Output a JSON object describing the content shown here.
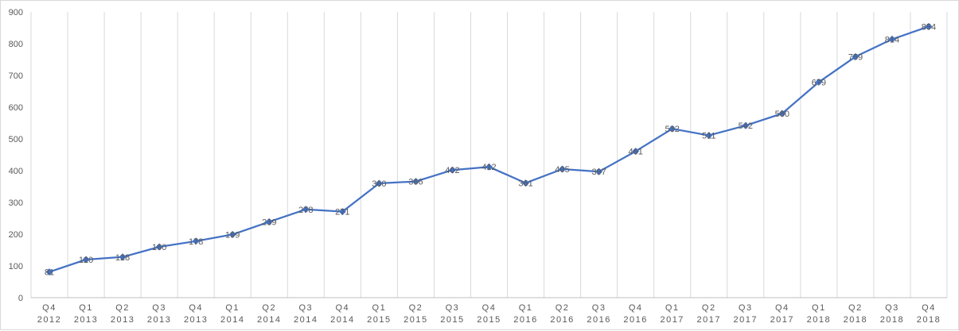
{
  "chart_data": {
    "type": "line",
    "title": "",
    "xlabel": "",
    "ylabel": "",
    "ylim": [
      0,
      900
    ],
    "yticks": [
      0,
      100,
      200,
      300,
      400,
      500,
      600,
      700,
      800,
      900
    ],
    "grid": {
      "horizontal": false,
      "vertical": true
    },
    "legend": "none",
    "categories": [
      [
        "Q4",
        "2012"
      ],
      [
        "Q1",
        "2013"
      ],
      [
        "Q2",
        "2013"
      ],
      [
        "Q3",
        "2013"
      ],
      [
        "Q4",
        "2013"
      ],
      [
        "Q1",
        "2014"
      ],
      [
        "Q2",
        "2014"
      ],
      [
        "Q3",
        "2014"
      ],
      [
        "Q4",
        "2014"
      ],
      [
        "Q1",
        "2015"
      ],
      [
        "Q2",
        "2015"
      ],
      [
        "Q3",
        "2015"
      ],
      [
        "Q4",
        "2015"
      ],
      [
        "Q1",
        "2016"
      ],
      [
        "Q2",
        "2016"
      ],
      [
        "Q3",
        "2016"
      ],
      [
        "Q4",
        "2016"
      ],
      [
        "Q1",
        "2017"
      ],
      [
        "Q2",
        "2017"
      ],
      [
        "Q3",
        "2017"
      ],
      [
        "Q4",
        "2017"
      ],
      [
        "Q1",
        "2018"
      ],
      [
        "Q2",
        "2018"
      ],
      [
        "Q3",
        "2018"
      ],
      [
        "Q4",
        "2018"
      ]
    ],
    "series": [
      {
        "color": "#4472c4",
        "marker": "diamond",
        "values": [
          81,
          120,
          128,
          160,
          178,
          199,
          239,
          278,
          271,
          360,
          366,
          402,
          412,
          361,
          405,
          397,
          461,
          532,
          511,
          542,
          580,
          679,
          759,
          814,
          854
        ]
      }
    ]
  },
  "colors": {
    "grid": "#d9d9d9",
    "axis": "#bfbfbf",
    "text": "#595959"
  }
}
